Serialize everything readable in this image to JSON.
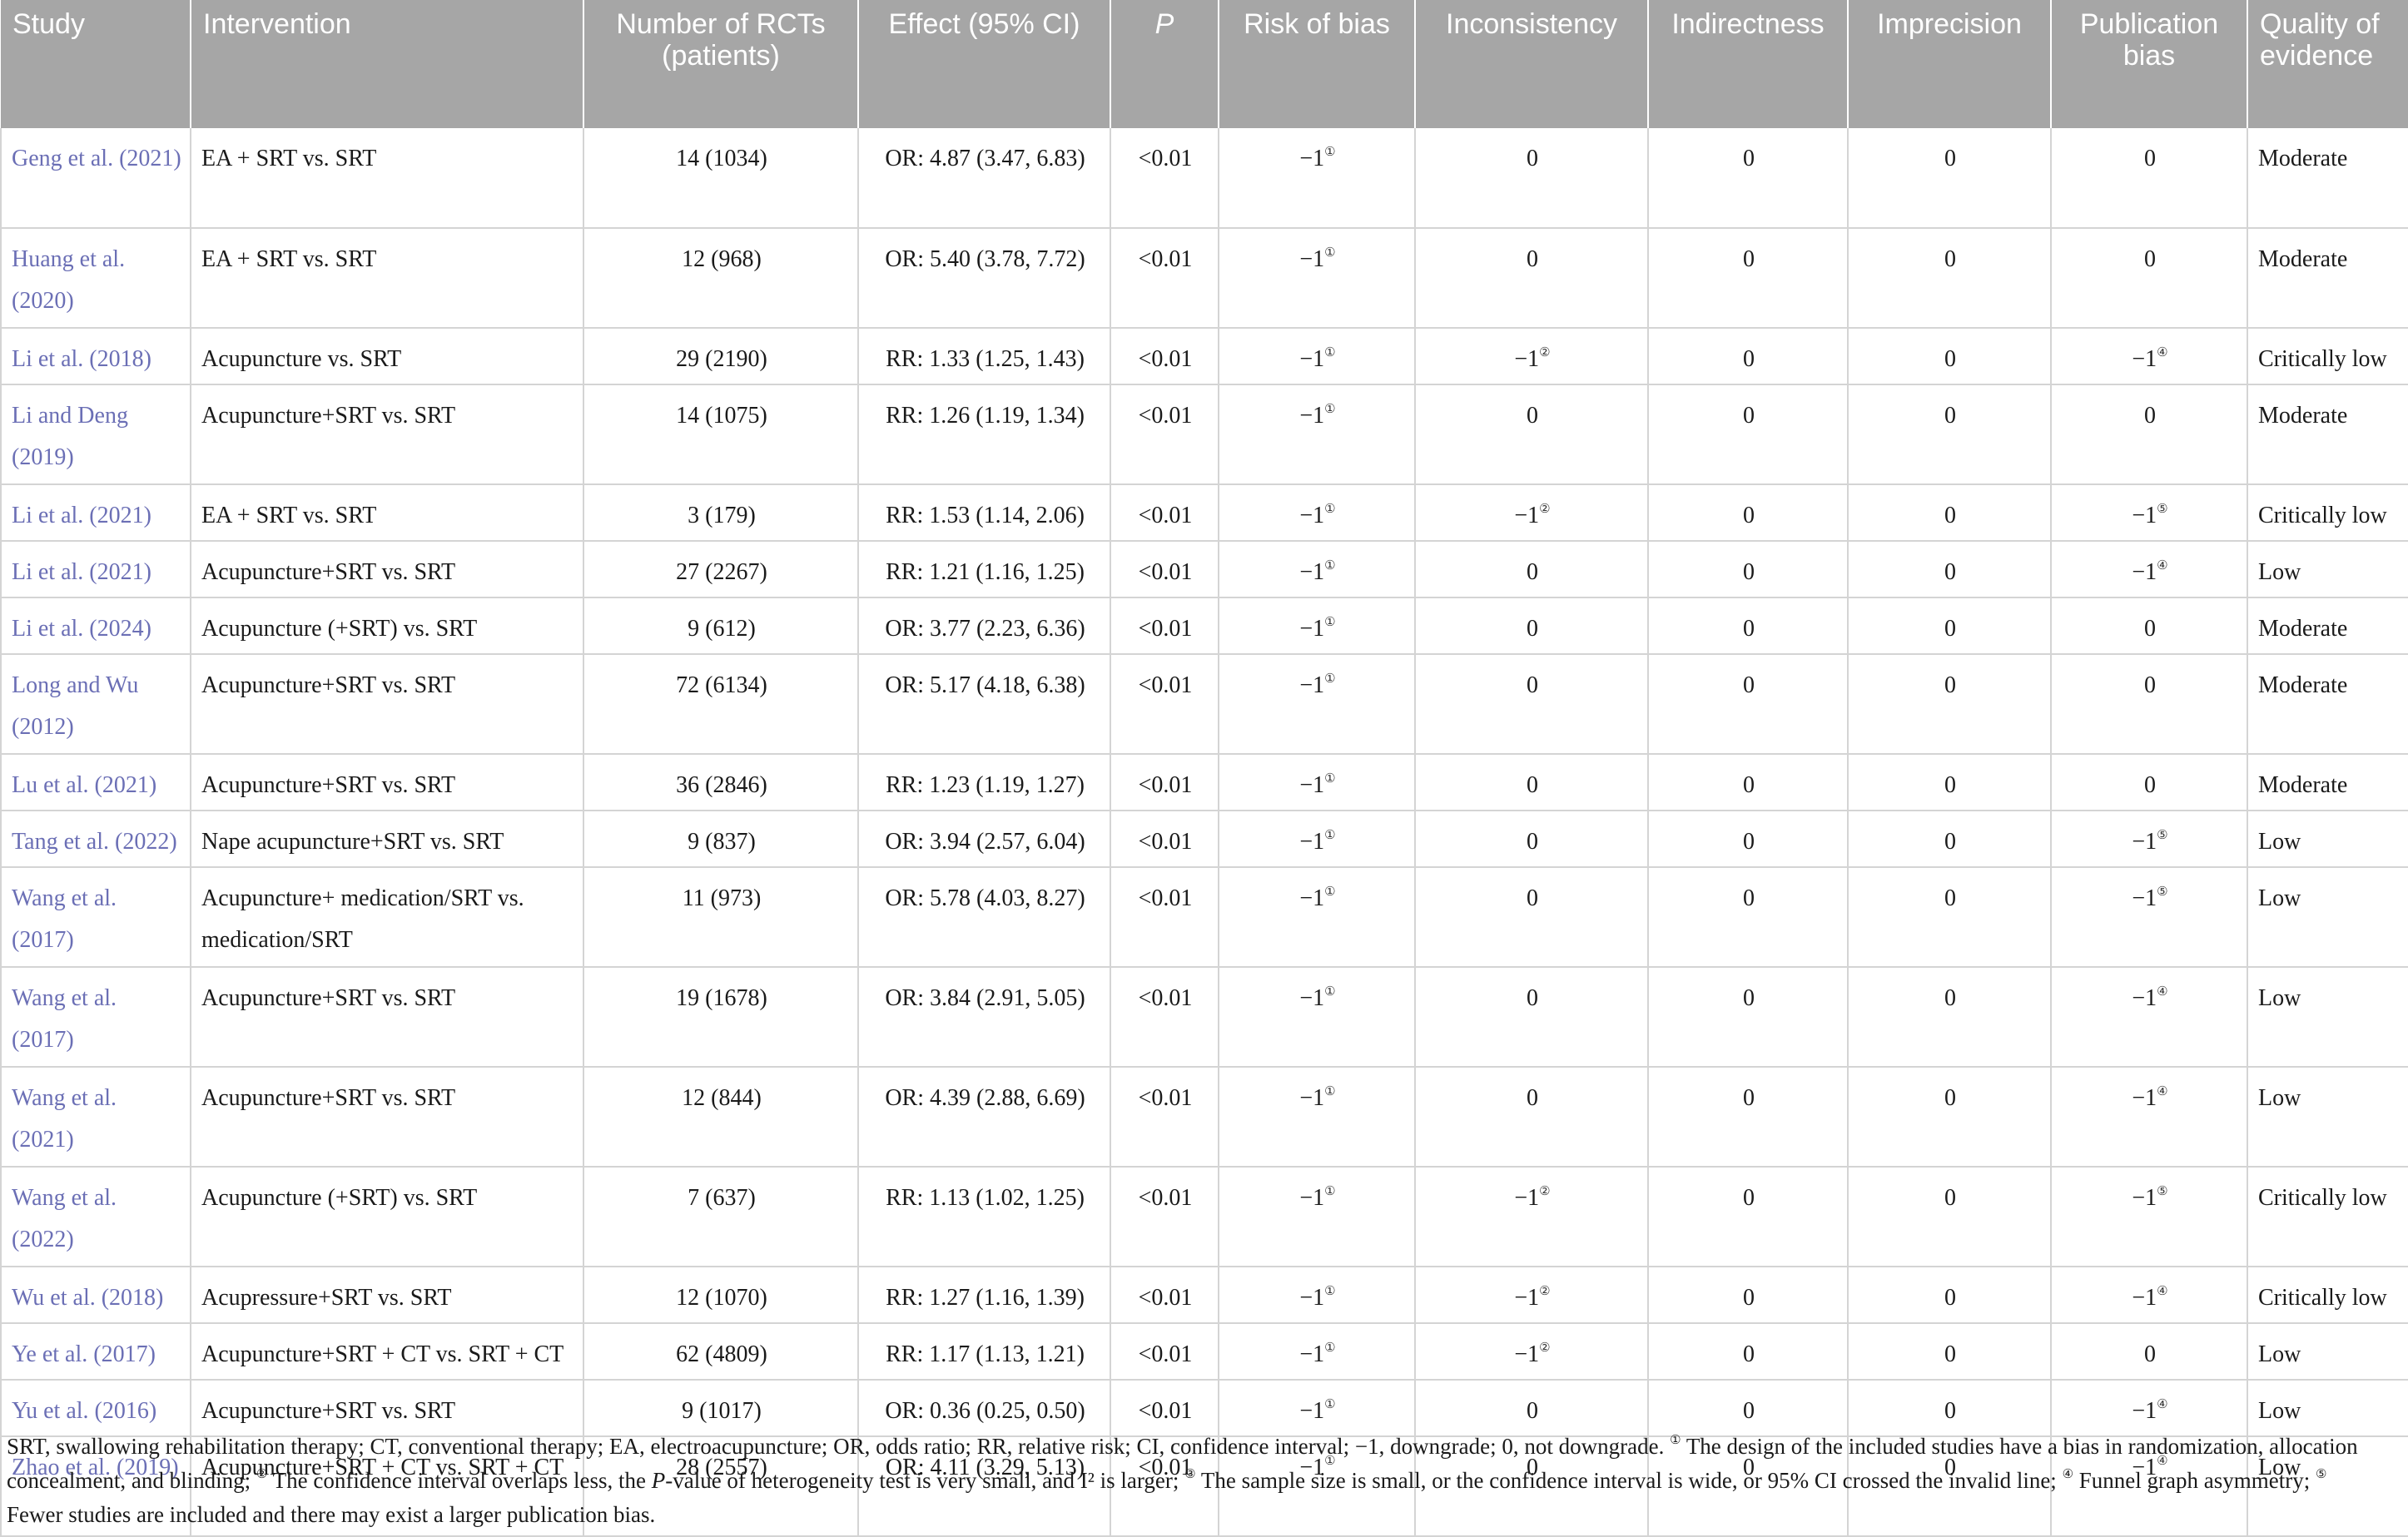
{
  "table": {
    "headers": [
      "Study",
      "Intervention",
      "Number of RCTs (patients)",
      "Effect (95% CI)",
      "P",
      "Risk of bias",
      "Inconsistency",
      "Indirectness",
      "Imprecision",
      "Publication bias",
      "Quality of evidence"
    ],
    "rows": [
      {
        "study": "Geng et al. (2021)",
        "intervention": "EA + SRT vs. SRT",
        "rcts": "14 (1034)",
        "effect": "OR: 4.87 (3.47, 6.83)",
        "p": "<0.01",
        "risk": "−1",
        "risk_fn": "①",
        "inconsistency": "0",
        "inconsistency_fn": "",
        "indirectness": "0",
        "imprecision": "0",
        "publication": "0",
        "publication_fn": "",
        "quality": "Moderate"
      },
      {
        "study": "Huang et al. (2020)",
        "intervention": "EA + SRT vs. SRT",
        "rcts": "12 (968)",
        "effect": "OR: 5.40 (3.78, 7.72)",
        "p": "<0.01",
        "risk": "−1",
        "risk_fn": "①",
        "inconsistency": "0",
        "inconsistency_fn": "",
        "indirectness": "0",
        "imprecision": "0",
        "publication": "0",
        "publication_fn": "",
        "quality": "Moderate"
      },
      {
        "study": "Li et al. (2018)",
        "intervention": "Acupuncture vs. SRT",
        "rcts": "29 (2190)",
        "effect": "RR: 1.33 (1.25, 1.43)",
        "p": "<0.01",
        "risk": "−1",
        "risk_fn": "①",
        "inconsistency": "−1",
        "inconsistency_fn": "②",
        "indirectness": "0",
        "imprecision": "0",
        "publication": "−1",
        "publication_fn": "④",
        "quality": "Critically low"
      },
      {
        "study": "Li and Deng (2019)",
        "intervention": "Acupuncture+SRT vs. SRT",
        "rcts": "14 (1075)",
        "effect": "RR: 1.26 (1.19, 1.34)",
        "p": "<0.01",
        "risk": "−1",
        "risk_fn": "①",
        "inconsistency": "0",
        "inconsistency_fn": "",
        "indirectness": "0",
        "imprecision": "0",
        "publication": "0",
        "publication_fn": "",
        "quality": "Moderate"
      },
      {
        "study": "Li et al. (2021)",
        "intervention": "EA + SRT vs. SRT",
        "rcts": "3 (179)",
        "effect": "RR: 1.53 (1.14, 2.06)",
        "p": "<0.01",
        "risk": "−1",
        "risk_fn": "①",
        "inconsistency": "−1",
        "inconsistency_fn": "②",
        "indirectness": "0",
        "imprecision": "0",
        "publication": "−1",
        "publication_fn": "⑤",
        "quality": "Critically low"
      },
      {
        "study": "Li et al. (2021)",
        "intervention": "Acupuncture+SRT vs. SRT",
        "rcts": "27 (2267)",
        "effect": "RR: 1.21 (1.16, 1.25)",
        "p": "<0.01",
        "risk": "−1",
        "risk_fn": "①",
        "inconsistency": "0",
        "inconsistency_fn": "",
        "indirectness": "0",
        "imprecision": "0",
        "publication": "−1",
        "publication_fn": "④",
        "quality": "Low"
      },
      {
        "study": "Li et al. (2024)",
        "intervention": "Acupuncture (+SRT) vs. SRT",
        "rcts": "9 (612)",
        "effect": "OR: 3.77 (2.23, 6.36)",
        "p": "<0.01",
        "risk": "−1",
        "risk_fn": "①",
        "inconsistency": "0",
        "inconsistency_fn": "",
        "indirectness": "0",
        "imprecision": "0",
        "publication": "0",
        "publication_fn": "",
        "quality": "Moderate"
      },
      {
        "study": "Long and Wu (2012)",
        "intervention": "Acupuncture+SRT vs. SRT",
        "rcts": "72 (6134)",
        "effect": "OR: 5.17 (4.18, 6.38)",
        "p": "<0.01",
        "risk": "−1",
        "risk_fn": "①",
        "inconsistency": "0",
        "inconsistency_fn": "",
        "indirectness": "0",
        "imprecision": "0",
        "publication": "0",
        "publication_fn": "",
        "quality": "Moderate"
      },
      {
        "study": "Lu et al. (2021)",
        "intervention": "Acupuncture+SRT vs. SRT",
        "rcts": "36 (2846)",
        "effect": "RR: 1.23 (1.19, 1.27)",
        "p": "<0.01",
        "risk": "−1",
        "risk_fn": "①",
        "inconsistency": "0",
        "inconsistency_fn": "",
        "indirectness": "0",
        "imprecision": "0",
        "publication": "0",
        "publication_fn": "",
        "quality": "Moderate"
      },
      {
        "study": "Tang et al. (2022)",
        "intervention": "Nape acupuncture+SRT vs. SRT",
        "rcts": "9 (837)",
        "effect": "OR: 3.94 (2.57, 6.04)",
        "p": "<0.01",
        "risk": "−1",
        "risk_fn": "①",
        "inconsistency": "0",
        "inconsistency_fn": "",
        "indirectness": "0",
        "imprecision": "0",
        "publication": "−1",
        "publication_fn": "⑤",
        "quality": "Low"
      },
      {
        "study": "Wang et al. (2017)",
        "intervention": "Acupuncture+ medication/SRT vs. medication/SRT",
        "rcts": "11 (973)",
        "effect": "OR: 5.78 (4.03, 8.27)",
        "p": "<0.01",
        "risk": "−1",
        "risk_fn": "①",
        "inconsistency": "0",
        "inconsistency_fn": "",
        "indirectness": "0",
        "imprecision": "0",
        "publication": "−1",
        "publication_fn": "⑤",
        "quality": "Low"
      },
      {
        "study": "Wang et al. (2017)",
        "intervention": "Acupuncture+SRT vs. SRT",
        "rcts": "19 (1678)",
        "effect": "OR: 3.84 (2.91, 5.05)",
        "p": "<0.01",
        "risk": "−1",
        "risk_fn": "①",
        "inconsistency": "0",
        "inconsistency_fn": "",
        "indirectness": "0",
        "imprecision": "0",
        "publication": "−1",
        "publication_fn": "④",
        "quality": "Low"
      },
      {
        "study": "Wang et al. (2021)",
        "intervention": "Acupuncture+SRT vs. SRT",
        "rcts": "12 (844)",
        "effect": "OR: 4.39 (2.88, 6.69)",
        "p": "<0.01",
        "risk": "−1",
        "risk_fn": "①",
        "inconsistency": "0",
        "inconsistency_fn": "",
        "indirectness": "0",
        "imprecision": "0",
        "publication": "−1",
        "publication_fn": "④",
        "quality": "Low"
      },
      {
        "study": "Wang et al. (2022)",
        "intervention": "Acupuncture (+SRT) vs. SRT",
        "rcts": "7 (637)",
        "effect": "RR: 1.13 (1.02, 1.25)",
        "p": "<0.01",
        "risk": "−1",
        "risk_fn": "①",
        "inconsistency": "−1",
        "inconsistency_fn": "②",
        "indirectness": "0",
        "imprecision": "0",
        "publication": "−1",
        "publication_fn": "⑤",
        "quality": "Critically low"
      },
      {
        "study": "Wu et al. (2018)",
        "intervention": "Acupressure+SRT vs. SRT",
        "rcts": "12 (1070)",
        "effect": "RR: 1.27 (1.16, 1.39)",
        "p": "<0.01",
        "risk": "−1",
        "risk_fn": "①",
        "inconsistency": "−1",
        "inconsistency_fn": "②",
        "indirectness": "0",
        "imprecision": "0",
        "publication": "−1",
        "publication_fn": "④",
        "quality": "Critically low"
      },
      {
        "study": "Ye et al. (2017)",
        "intervention": "Acupuncture+SRT + CT vs. SRT + CT",
        "rcts": "62 (4809)",
        "effect": "RR: 1.17 (1.13, 1.21)",
        "p": "<0.01",
        "risk": "−1",
        "risk_fn": "①",
        "inconsistency": "−1",
        "inconsistency_fn": "②",
        "indirectness": "0",
        "imprecision": "0",
        "publication": "0",
        "publication_fn": "",
        "quality": "Low"
      },
      {
        "study": "Yu et al. (2016)",
        "intervention": "Acupuncture+SRT vs. SRT",
        "rcts": "9 (1017)",
        "effect": "OR: 0.36 (0.25, 0.50)",
        "p": "<0.01",
        "risk": "−1",
        "risk_fn": "①",
        "inconsistency": "0",
        "inconsistency_fn": "",
        "indirectness": "0",
        "imprecision": "0",
        "publication": "−1",
        "publication_fn": "④",
        "quality": "Low"
      },
      {
        "study": "Zhao et al. (2019)",
        "intervention": "Acupuncture+SRT + CT vs. SRT + CT",
        "rcts": "28 (2557)",
        "effect": "OR: 4.11 (3.29, 5.13)",
        "p": "<0.01",
        "risk": "−1",
        "risk_fn": "①",
        "inconsistency": "0",
        "inconsistency_fn": "",
        "indirectness": "0",
        "imprecision": "0",
        "publication": "−1",
        "publication_fn": "④",
        "quality": "Low"
      }
    ]
  },
  "footnote": {
    "abbrev": "SRT, swallowing rehabilitation therapy; CT, conventional therapy; EA, electroacupuncture; OR, odds ratio; RR, relative risk; CI, confidence interval; −1, downgrade; 0, not downgrade.",
    "m1": "①",
    "t1": "The design of the included studies have a bias in randomization, allocation concealment, and blinding;",
    "m2": "②",
    "t2a": "The confidence interval overlaps less, the",
    "t2p": "P",
    "t2b": "-value of heterogeneity test is very small, and I² is larger;",
    "m3": "③",
    "t3": "The sample size is small, or the confidence interval is wide, or 95% CI crossed the invalid line;",
    "m4": "④",
    "t4": "Funnel graph asymmetry;",
    "m5": "⑤",
    "t5": "Fewer studies are included and there may exist a larger publication bias."
  }
}
